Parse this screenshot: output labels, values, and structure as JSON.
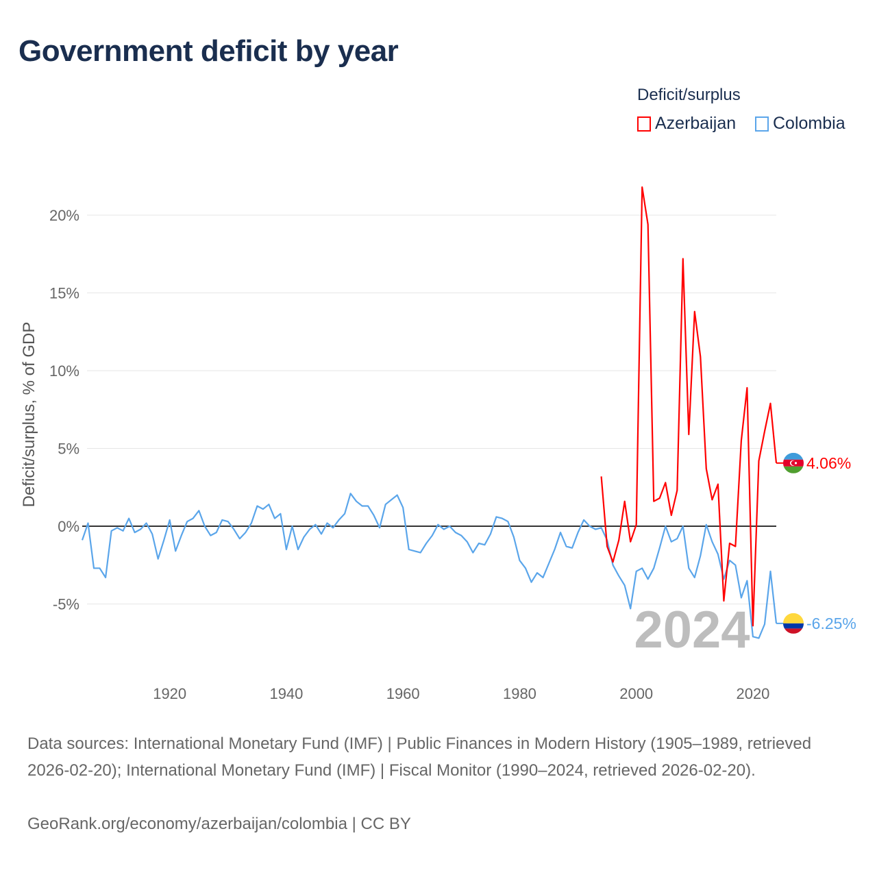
{
  "title": "Government deficit by year",
  "legend": {
    "title": "Deficit/surplus",
    "items": [
      {
        "label": "Azerbaijan",
        "color": "#ff0000"
      },
      {
        "label": "Colombia",
        "color": "#5aa5ea"
      }
    ]
  },
  "watermark_year": "2024",
  "footer": {
    "sources": "Data sources: International Monetary Fund (IMF) | Public Finances in Modern History (1905–1989, retrieved 2026-02-20); International Monetary Fund (IMF) | Fiscal Monitor (1990–2024, retrieved 2026-02-20).",
    "credit": "GeoRank.org/economy/azerbaijan/colombia | CC BY"
  },
  "chart_data": {
    "type": "line",
    "title": "Government deficit by year",
    "ylabel": "Deficit/surplus, % of GDP",
    "xlabel": "",
    "xlim": [
      1905,
      2024
    ],
    "ylim": [
      -8.6,
      22.5
    ],
    "xticks": [
      1920,
      1940,
      1960,
      1980,
      2000,
      2020
    ],
    "xtick_labels": [
      "1920",
      "1940",
      "1960",
      "1980",
      "2000",
      "2020"
    ],
    "yticks": [
      -5,
      0,
      5,
      10,
      15,
      20
    ],
    "ytick_labels": [
      "-5%",
      "0%",
      "5%",
      "10%",
      "15%",
      "20%"
    ],
    "grid": true,
    "legend_position": "top-right",
    "series": [
      {
        "name": "Azerbaijan",
        "color": "#ff0000",
        "end_label": "4.06%",
        "start_year": 1994,
        "values": [
          3.2,
          -1.3,
          -2.3,
          -0.9,
          1.6,
          -1.0,
          0.1,
          21.8,
          19.4,
          1.6,
          1.8,
          2.8,
          0.7,
          2.3,
          17.2,
          5.9,
          13.8,
          10.9,
          3.7,
          1.7,
          2.7,
          -4.8,
          -1.1,
          -1.3,
          5.5,
          8.9,
          -6.4,
          4.2,
          6.1,
          7.9,
          4.06
        ]
      },
      {
        "name": "Colombia",
        "color": "#5aa5ea",
        "end_label": "-6.25%",
        "start_year": 1905,
        "values": [
          -0.9,
          0.2,
          -2.7,
          -2.7,
          -3.3,
          -0.3,
          -0.1,
          -0.3,
          0.5,
          -0.4,
          -0.2,
          0.2,
          -0.5,
          -2.1,
          -0.9,
          0.4,
          -1.6,
          -0.6,
          0.3,
          0.5,
          1.0,
          0.0,
          -0.6,
          -0.4,
          0.4,
          0.3,
          -0.2,
          -0.8,
          -0.4,
          0.2,
          1.3,
          1.1,
          1.4,
          0.5,
          0.8,
          -1.5,
          0.0,
          -1.5,
          -0.7,
          -0.2,
          0.1,
          -0.5,
          0.2,
          -0.1,
          0.4,
          0.8,
          2.1,
          1.6,
          1.3,
          1.3,
          0.7,
          -0.1,
          1.4,
          1.7,
          2.0,
          1.2,
          -1.5,
          -1.6,
          -1.7,
          -1.1,
          -0.6,
          0.1,
          -0.2,
          0.0,
          -0.4,
          -0.6,
          -1.0,
          -1.7,
          -1.1,
          -1.2,
          -0.5,
          0.6,
          0.5,
          0.3,
          -0.7,
          -2.2,
          -2.7,
          -3.6,
          -3.0,
          -3.3,
          -2.4,
          -1.5,
          -0.4,
          -1.3,
          -1.4,
          -0.4,
          0.4,
          0.0,
          -0.2,
          -0.1,
          -0.9,
          -2.5,
          -3.2,
          -3.8,
          -5.3,
          -2.9,
          -2.7,
          -3.4,
          -2.7,
          -1.4,
          0.0,
          -1.0,
          -0.8,
          0.0,
          -2.7,
          -3.3,
          -1.9,
          0.1,
          -1.0,
          -1.8,
          -3.4,
          -2.2,
          -2.5,
          -4.6,
          -3.5,
          -7.1,
          -7.2,
          -6.3,
          -2.9,
          -6.25
        ]
      }
    ]
  }
}
